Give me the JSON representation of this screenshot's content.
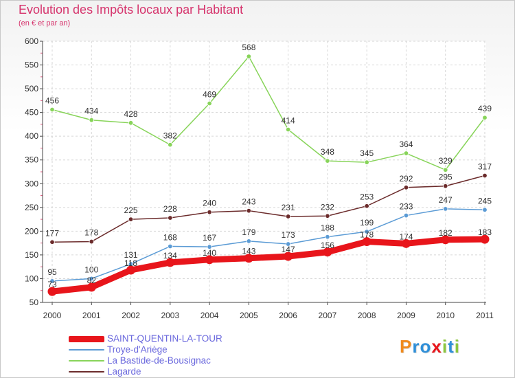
{
  "chart_data": {
    "type": "line",
    "title": "Evolution des Impôts locaux par Habitant",
    "subtitle": "(en € et par an)",
    "xlabel": "",
    "ylabel": "",
    "ylim": [
      50,
      600
    ],
    "y_ticks": [
      50,
      100,
      150,
      200,
      250,
      300,
      350,
      400,
      450,
      500,
      550,
      600
    ],
    "categories": [
      "2000",
      "2001",
      "2002",
      "2003",
      "2004",
      "2005",
      "2006",
      "2007",
      "2008",
      "2009",
      "2010",
      "2011"
    ],
    "grid": true,
    "series": [
      {
        "name": "SAINT-QUENTIN-LA-TOUR",
        "color": "#e8151b",
        "values": [
          73,
          82,
          118,
          134,
          140,
          143,
          147,
          156,
          178,
          174,
          182,
          183
        ],
        "labels": [
          "73",
          "82",
          "118",
          "134",
          "140",
          "143",
          "147",
          "156",
          "178",
          "174",
          "182",
          "183"
        ]
      },
      {
        "name": "Troye-d'Ariège",
        "color": "#5b9bd5",
        "values": [
          95,
          100,
          131,
          168,
          167,
          179,
          173,
          188,
          199,
          233,
          247,
          245
        ],
        "labels": [
          "95",
          "100",
          "131",
          "168",
          "167",
          "179",
          "173",
          "188",
          "199",
          "233",
          "247",
          "245"
        ]
      },
      {
        "name": "La Bastide-de-Bousignac",
        "color": "#88d45a",
        "values": [
          456,
          434,
          428,
          382,
          469,
          568,
          414,
          348,
          345,
          364,
          329,
          439
        ],
        "labels": [
          "456",
          "434",
          "428",
          "382",
          "469",
          "568",
          "414",
          "348",
          "345",
          "364",
          "329",
          "439"
        ]
      },
      {
        "name": "Lagarde",
        "color": "#6b2b2b",
        "values": [
          177,
          178,
          225,
          228,
          240,
          243,
          231,
          232,
          253,
          292,
          295,
          317
        ],
        "labels": [
          "177",
          "178",
          "225",
          "228",
          "240",
          "243",
          "231",
          "232",
          "253",
          "292",
          "295",
          "317"
        ]
      }
    ]
  },
  "logo": {
    "letters": [
      "P",
      "r",
      "o",
      "x",
      "i",
      "t",
      "i"
    ],
    "colors": [
      "#f08a1c",
      "#2f8fd8",
      "#2f8fd8",
      "#e8151b",
      "#8cc63f",
      "#2f8fd8",
      "#8cc63f"
    ]
  }
}
